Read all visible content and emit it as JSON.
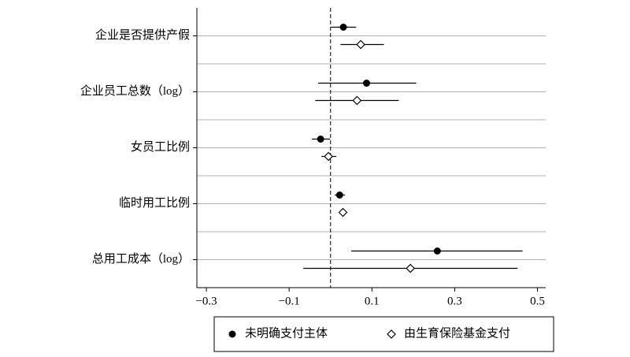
{
  "chart_data": {
    "type": "coefplot",
    "categories": [
      "企业是否提供产假",
      "企业员工总数（log）",
      "女员工比例",
      "临时用工比例",
      "总用工成本（log）"
    ],
    "series": [
      {
        "name": "未明确支付主体",
        "color": "#000000",
        "marker": "circle",
        "values": [
          0.031,
          0.087,
          -0.024,
          0.022,
          0.258
        ],
        "lower": [
          0.001,
          -0.03,
          -0.045,
          0.01,
          0.05
        ],
        "upper": [
          0.062,
          0.207,
          -0.001,
          0.035,
          0.464
        ]
      },
      {
        "name": "由生育保险基金支付",
        "color": "#000000",
        "marker": "diamond",
        "values": [
          0.073,
          0.064,
          -0.005,
          0.03,
          0.193
        ],
        "lower": [
          0.024,
          -0.037,
          -0.022,
          0.02,
          -0.066
        ],
        "upper": [
          0.129,
          0.165,
          0.014,
          0.039,
          0.452
        ]
      }
    ],
    "xlim": [
      -0.323,
      0.52
    ],
    "xticks": [
      {
        "value": -0.3,
        "label": "−0.3"
      },
      {
        "value": -0.1,
        "label": "−0.1"
      },
      0.1,
      0.3,
      0.5
    ],
    "reference_line": 0,
    "grid": true,
    "legend": "bottom"
  }
}
